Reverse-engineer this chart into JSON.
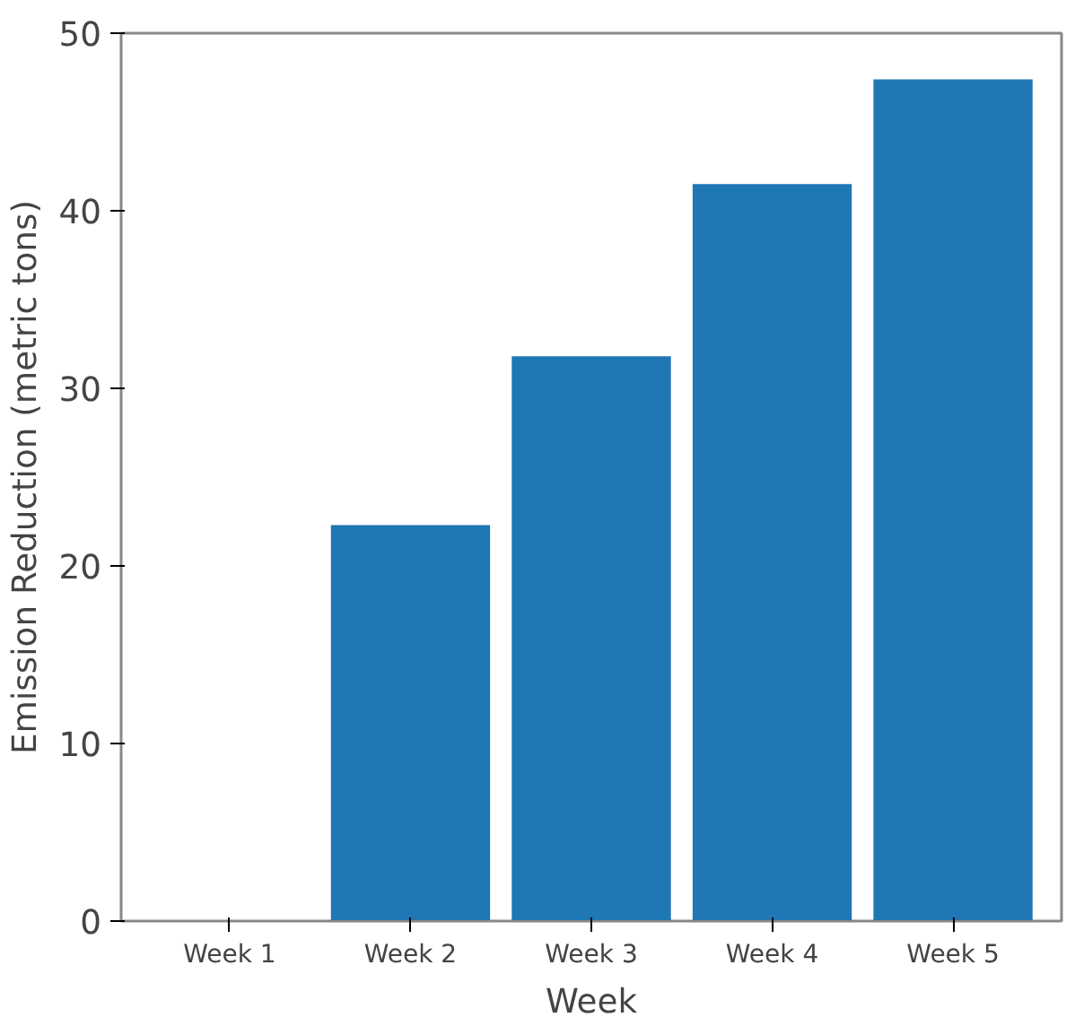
{
  "chart_data": {
    "type": "bar",
    "xlabel": "Week",
    "ylabel": "Emission Reduction (metric tons)",
    "categories": [
      "Week 1",
      "Week 2",
      "Week 3",
      "Week 4",
      "Week 5"
    ],
    "values": [
      0,
      22.3,
      31.8,
      41.5,
      47.4
    ],
    "color": "#1f77b4",
    "ylim": [
      0,
      50
    ],
    "yticks": [
      0,
      10,
      20,
      30,
      40,
      50
    ],
    "grid": false
  }
}
